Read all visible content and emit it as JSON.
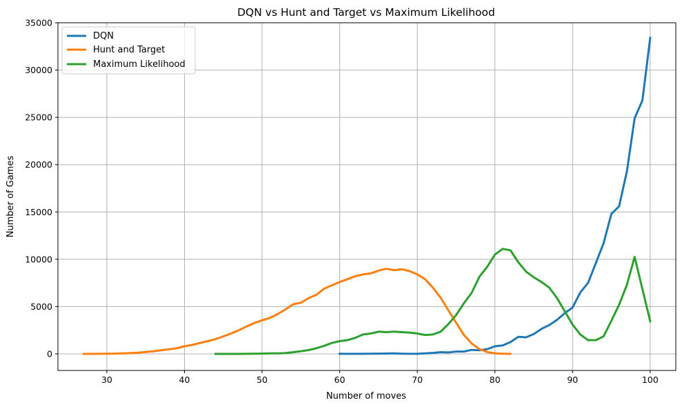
{
  "chart_data": {
    "type": "line",
    "title": "DQN vs Hunt and Target vs Maximum Likelihood",
    "xlabel": "Number of moves",
    "ylabel": "Number of Games",
    "xlim": [
      23.7,
      103.3
    ],
    "ylim": [
      -1750,
      35000
    ],
    "xticks": [
      30,
      40,
      50,
      60,
      70,
      80,
      90,
      100
    ],
    "yticks": [
      0,
      5000,
      10000,
      15000,
      20000,
      25000,
      30000,
      35000
    ],
    "grid": true,
    "legend_position": "top-left",
    "series": [
      {
        "name": "DQN",
        "color": "#1f77b4",
        "x": [
          60,
          61,
          62,
          63,
          64,
          65,
          66,
          67,
          68,
          69,
          70,
          71,
          72,
          73,
          74,
          75,
          76,
          77,
          78,
          79,
          80,
          81,
          82,
          83,
          84,
          85,
          86,
          87,
          88,
          89,
          90,
          91,
          92,
          93,
          94,
          95,
          96,
          97,
          98,
          99,
          100
        ],
        "y": [
          10,
          10,
          10,
          10,
          20,
          30,
          40,
          50,
          20,
          10,
          10,
          60,
          100,
          180,
          150,
          250,
          250,
          420,
          380,
          500,
          800,
          900,
          1250,
          1800,
          1750,
          2100,
          2650,
          3050,
          3600,
          4300,
          4900,
          6500,
          7500,
          9600,
          11700,
          14800,
          15600,
          19300,
          24900,
          26800,
          33400
        ]
      },
      {
        "name": "Hunt and Target",
        "color": "#ff7f0e",
        "x": [
          27,
          28,
          29,
          30,
          31,
          32,
          33,
          34,
          35,
          36,
          37,
          38,
          39,
          40,
          41,
          42,
          43,
          44,
          45,
          46,
          47,
          48,
          49,
          50,
          51,
          52,
          53,
          54,
          55,
          56,
          57,
          58,
          59,
          60,
          61,
          62,
          63,
          64,
          65,
          66,
          67,
          68,
          69,
          70,
          71,
          72,
          73,
          74,
          75,
          76,
          77,
          78,
          79,
          80,
          81,
          82
        ],
        "y": [
          0,
          0,
          10,
          20,
          30,
          50,
          80,
          130,
          200,
          280,
          380,
          480,
          600,
          800,
          950,
          1150,
          1350,
          1550,
          1850,
          2150,
          2500,
          2900,
          3250,
          3550,
          3800,
          4200,
          4700,
          5250,
          5400,
          5900,
          6250,
          6900,
          7250,
          7600,
          7900,
          8200,
          8400,
          8500,
          8800,
          9000,
          8850,
          8950,
          8750,
          8400,
          7900,
          7000,
          5950,
          4600,
          3300,
          2000,
          1100,
          500,
          200,
          60,
          20,
          0
        ]
      },
      {
        "name": "Maximum Likelihood",
        "color": "#2ca02c",
        "x": [
          44,
          45,
          46,
          47,
          48,
          49,
          50,
          51,
          52,
          53,
          54,
          55,
          56,
          57,
          58,
          59,
          60,
          61,
          62,
          63,
          64,
          65,
          66,
          67,
          68,
          69,
          70,
          71,
          72,
          73,
          74,
          75,
          76,
          77,
          78,
          79,
          80,
          81,
          82,
          83,
          84,
          85,
          86,
          87,
          88,
          89,
          90,
          91,
          92,
          93,
          94,
          95,
          96,
          97,
          98,
          99,
          100
        ],
        "y": [
          0,
          0,
          0,
          0,
          10,
          20,
          30,
          50,
          60,
          80,
          180,
          280,
          400,
          600,
          850,
          1150,
          1350,
          1450,
          1700,
          2050,
          2150,
          2350,
          2300,
          2350,
          2300,
          2250,
          2150,
          2000,
          2050,
          2350,
          3150,
          4100,
          5350,
          6450,
          8150,
          9200,
          10500,
          11100,
          10950,
          9700,
          8700,
          8100,
          7600,
          7000,
          5900,
          4500,
          3100,
          2050,
          1450,
          1450,
          1850,
          3500,
          5200,
          7300,
          10250,
          6850,
          3450
        ]
      }
    ]
  }
}
